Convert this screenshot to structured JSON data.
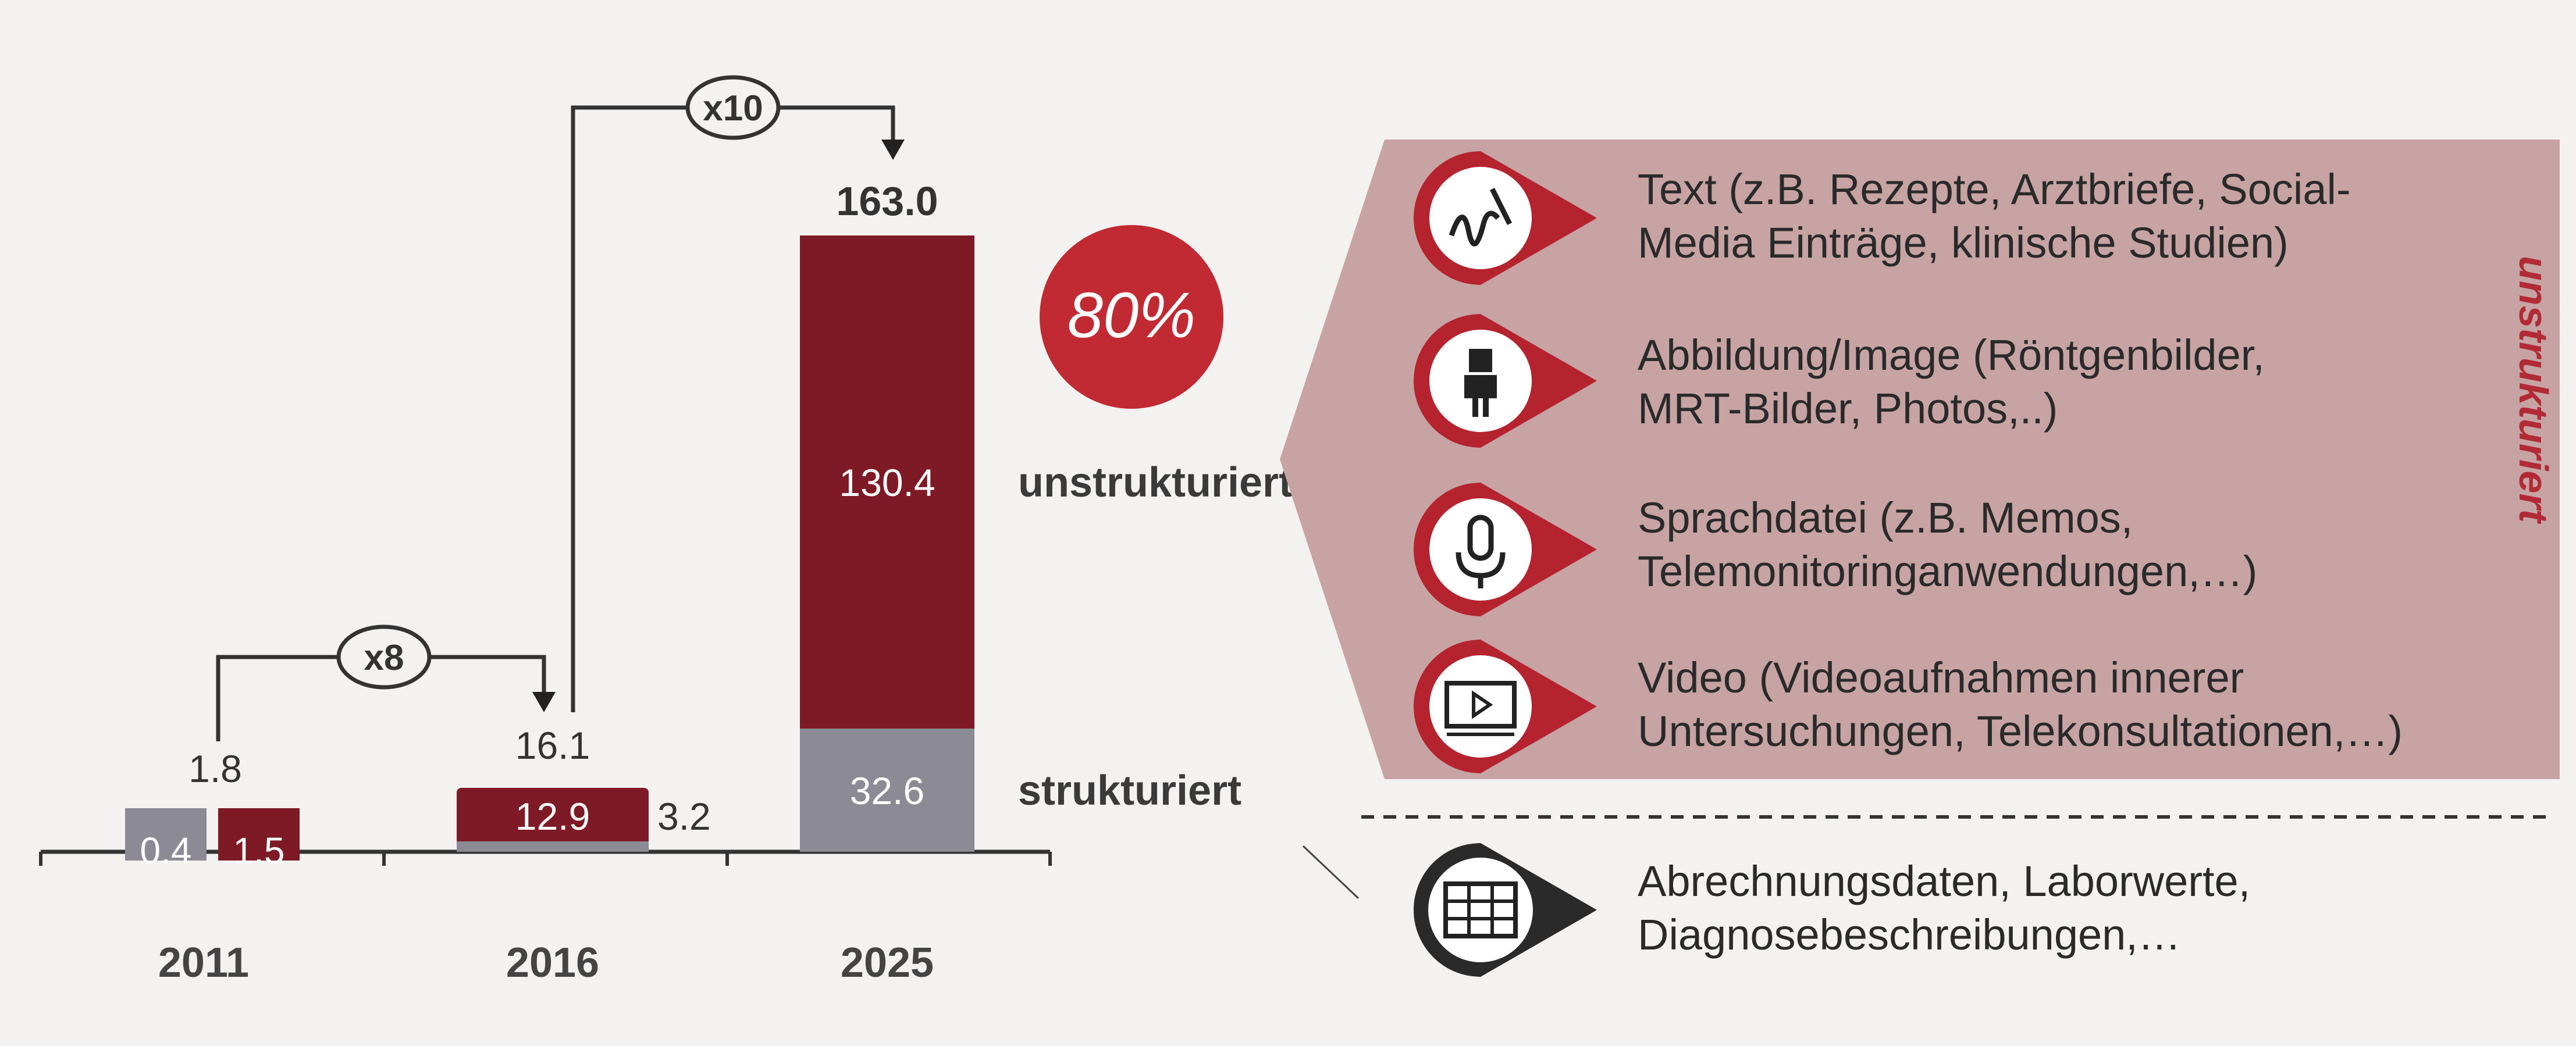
{
  "chart_data": {
    "type": "bar",
    "categories": [
      "2011",
      "2016",
      "2025"
    ],
    "series": [
      {
        "name": "strukturiert",
        "values": [
          0.4,
          3.2,
          32.6
        ]
      },
      {
        "name": "unstrukturiert",
        "values": [
          1.5,
          12.9,
          130.4
        ]
      }
    ],
    "totals": [
      "1.8",
      "16.1",
      "163.0"
    ],
    "value_labels": {
      "strukturiert": [
        "0.4",
        "3.2",
        "32.6"
      ],
      "unstrukturiert": [
        "1.5",
        "12.9",
        "130.4"
      ]
    },
    "series_labels": {
      "unstrukturiert": "unstrukturiert",
      "strukturiert": "strukturiert"
    },
    "growth_annotations": [
      {
        "from": "2011",
        "to": "2016",
        "label": "x8"
      },
      {
        "from": "2016",
        "to": "2025",
        "label": "x10"
      }
    ],
    "percent_badge": "80%",
    "ylim": [
      0,
      170
    ],
    "colors": {
      "unstructured": "#7e1a25",
      "structured": "#8c8a94",
      "badge": "#c22a33",
      "panel": "#c7a4a3"
    }
  },
  "panel": {
    "vertical_label": "unstrukturiert",
    "items": [
      {
        "icon": "handwriting-icon",
        "line1": "Text (z.B. Rezepte, Arztbriefe, Social-",
        "line2": "Media Einträge, klinische Studien)"
      },
      {
        "icon": "xray-figure-icon",
        "line1": "Abbildung/Image (Röntgenbilder,",
        "line2": "MRT-Bilder, Photos,..)"
      },
      {
        "icon": "microphone-icon",
        "line1": "Sprachdatei (z.B. Memos,",
        "line2": "Telemonitoringanwendungen,…)"
      },
      {
        "icon": "video-player-icon",
        "line1": "Video (Videoaufnahmen innerer",
        "line2": "Untersuchungen, Telekonsultationen,…)"
      }
    ],
    "structured_item": {
      "icon": "database-table-icon",
      "line1": "Abrechnungsdaten, Laborwerte,",
      "line2": "Diagnosebeschreibungen,…"
    }
  }
}
